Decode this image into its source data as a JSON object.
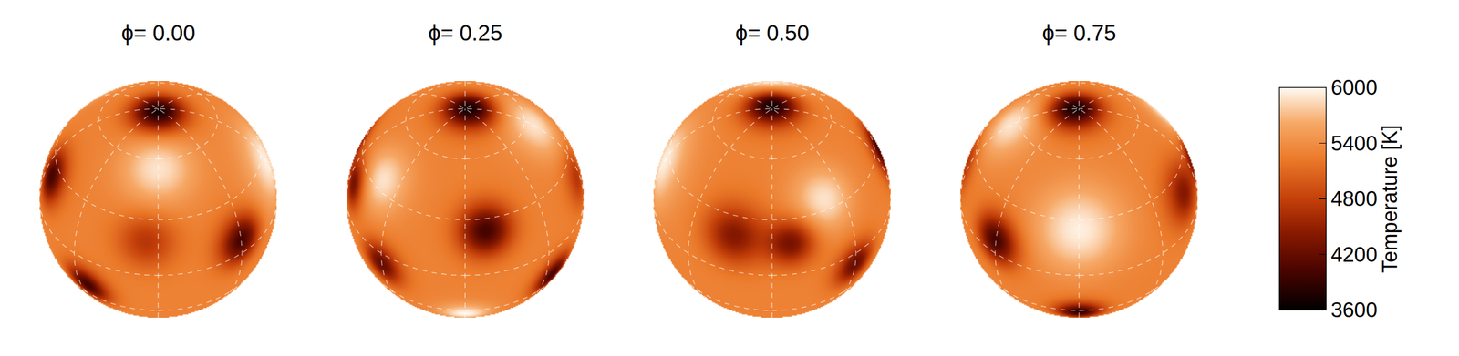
{
  "chart_data": {
    "type": "surface_map",
    "panels": [
      {
        "value": 0.0,
        "label": "ϕ= 0.00"
      },
      {
        "value": 0.25,
        "label": "ϕ= 0.25"
      },
      {
        "value": 0.5,
        "label": "ϕ= 0.50"
      },
      {
        "value": 0.75,
        "label": "ϕ= 0.75"
      }
    ],
    "base_temperature": 5300,
    "spots": [
      {
        "lon": 0,
        "lat": 88,
        "temperature": 3700,
        "radius": 13
      },
      {
        "lon": 281,
        "lat": 24,
        "temperature": 4000,
        "radius": 13
      },
      {
        "lon": 45,
        "lat": 8,
        "temperature": 4000,
        "radius": 13
      },
      {
        "lon": 321,
        "lat": -19,
        "temperature": 4000,
        "radius": 12
      },
      {
        "lon": 225,
        "lat": -7,
        "temperature": 4200,
        "radius": 12
      },
      {
        "lon": 160,
        "lat": 20,
        "temperature": 4400,
        "radius": 15
      },
      {
        "lon": 190,
        "lat": 18,
        "temperature": 4300,
        "radius": 12
      },
      {
        "lon": 90,
        "lat": -32,
        "temperature": 3900,
        "radius": 11
      },
      {
        "lon": 354,
        "lat": 19,
        "temperature": 4700,
        "radius": 14
      },
      {
        "lon": 0,
        "lat": 55,
        "temperature": 5900,
        "radius": 18
      },
      {
        "lon": 90,
        "lat": 25,
        "temperature": 5950,
        "radius": 22
      },
      {
        "lon": 270,
        "lat": -35,
        "temperature": 6000,
        "radius": 12
      },
      {
        "lon": 212,
        "lat": 35,
        "temperature": 5900,
        "radius": 16
      }
    ],
    "colorbar": {
      "title": "Temperature [K]",
      "range": [
        3600,
        6000
      ],
      "ticks": [
        3600,
        4200,
        4800,
        5400,
        6000
      ]
    },
    "tick_labels": false
  }
}
